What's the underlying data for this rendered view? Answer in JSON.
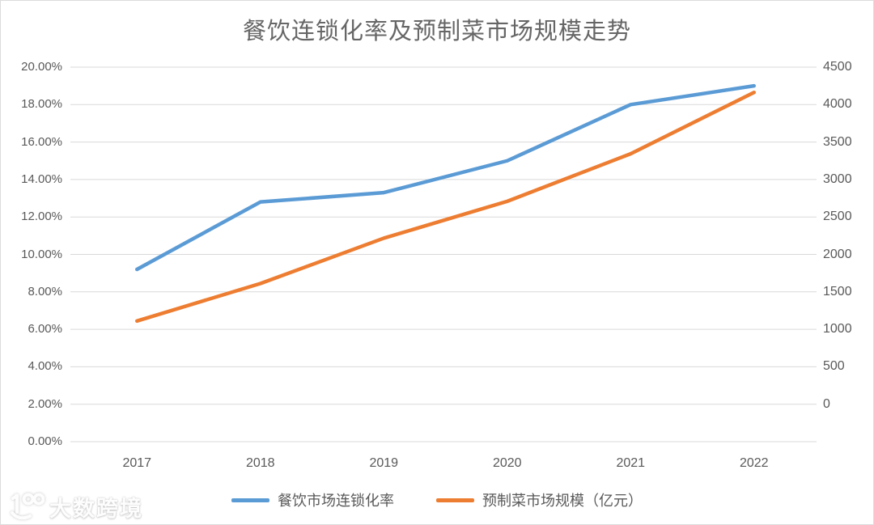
{
  "title": "餐饮连锁化率及预制菜市场规模走势",
  "colors": {
    "series_blue": "#5B9BD5",
    "series_orange": "#ED7D31",
    "gridline": "#D9D9D9",
    "axis_text": "#595959",
    "title_text": "#666666"
  },
  "left_axis": {
    "ticks": [
      "20.00%",
      "18.00%",
      "16.00%",
      "14.00%",
      "12.00%",
      "10.00%",
      "8.00%",
      "6.00%",
      "4.00%",
      "2.00%",
      "0.00%"
    ]
  },
  "right_axis": {
    "ticks": [
      "4500",
      "4000",
      "3500",
      "3000",
      "2500",
      "2000",
      "1500",
      "1000",
      "500",
      "0"
    ]
  },
  "x_axis": {
    "ticks": [
      "2017",
      "2018",
      "2019",
      "2020",
      "2021",
      "2022"
    ]
  },
  "legend": [
    {
      "name": "餐饮市场连锁化率",
      "color": "#5B9BD5"
    },
    {
      "name": "预制菜市场规模（亿元）",
      "color": "#ED7D31"
    }
  ],
  "watermark": {
    "text": "大数跨境",
    "logo": "100-smile-logo-icon"
  },
  "chart_data": {
    "type": "line",
    "title": "餐饮连锁化率及预制菜市场规模走势",
    "x": [
      "2017",
      "2018",
      "2019",
      "2020",
      "2021",
      "2022"
    ],
    "series": [
      {
        "name": "餐饮市场连锁化率",
        "axis": "left",
        "unit": "%",
        "color": "#5B9BD5",
        "values": [
          9.2,
          12.8,
          13.3,
          15.0,
          18.0,
          19.0
        ]
      },
      {
        "name": "预制菜市场规模（亿元）",
        "axis": "right",
        "unit": "亿元",
        "color": "#ED7D31",
        "values": [
          1450,
          1900,
          2445,
          2888,
          3459,
          4196
        ]
      }
    ],
    "left_ylim": [
      0,
      20
    ],
    "right_ylim": [
      0,
      4500
    ],
    "left_tick_step": 2,
    "right_tick_step": 500,
    "grid": true,
    "legend_position": "bottom"
  }
}
